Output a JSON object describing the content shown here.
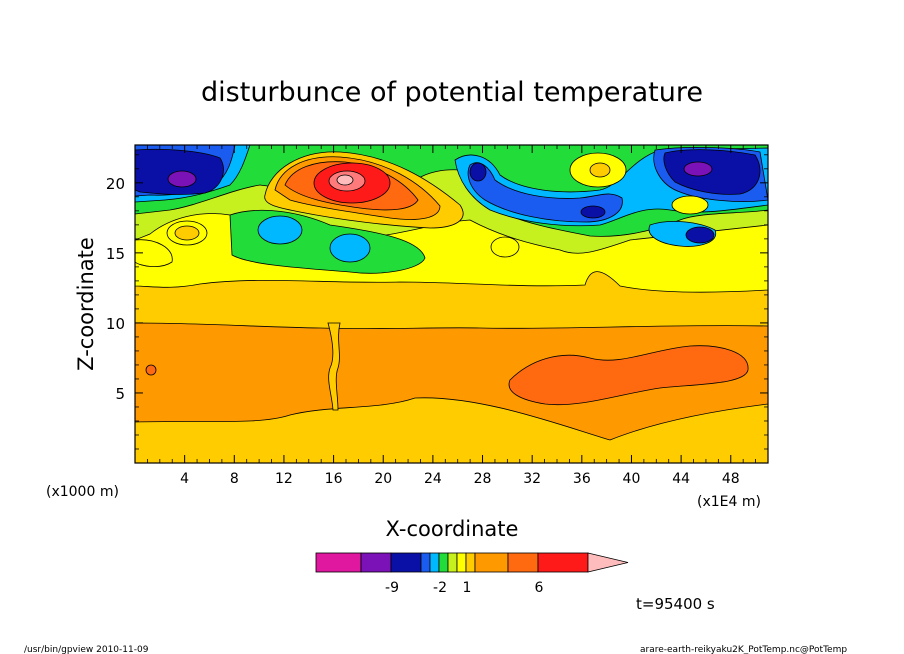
{
  "chart_data": {
    "type": "heatmap",
    "title": "disturbunce of potential temperature",
    "xlabel": "X-coordinate",
    "ylabel": "Z-coordinate",
    "x_unit_left": "(x1000 m)",
    "x_unit_right": "(x1E4 m)",
    "xlim": [
      0,
      51
    ],
    "ylim": [
      0,
      22.7
    ],
    "xticks": [
      4,
      8,
      12,
      16,
      20,
      24,
      28,
      32,
      36,
      40,
      44,
      48
    ],
    "yticks": [
      5,
      10,
      15,
      20
    ],
    "colorbar": {
      "labels": [
        {
          "text": "-9",
          "index": 2
        },
        {
          "text": "-2",
          "index": 5
        },
        {
          "text": "1",
          "index": 8
        },
        {
          "text": "6",
          "index": 11
        }
      ],
      "colors": [
        "#e0179f",
        "#7b12b7",
        "#0a10a6",
        "#1a5cf0",
        "#00b8ff",
        "#22dc3a",
        "#c6f01e",
        "#ffff00",
        "#ffcc00",
        "#ff9900",
        "#ff6a10",
        "#ff1a1a",
        "#ff7a7a",
        "#ffbcbc"
      ]
    },
    "time_label": "t=95400 s"
  },
  "footer": {
    "left": "/usr/bin/gpview   2010-11-09",
    "right": "arare-earth-reikyaku2K_PotTemp.nc@PotTemp"
  }
}
